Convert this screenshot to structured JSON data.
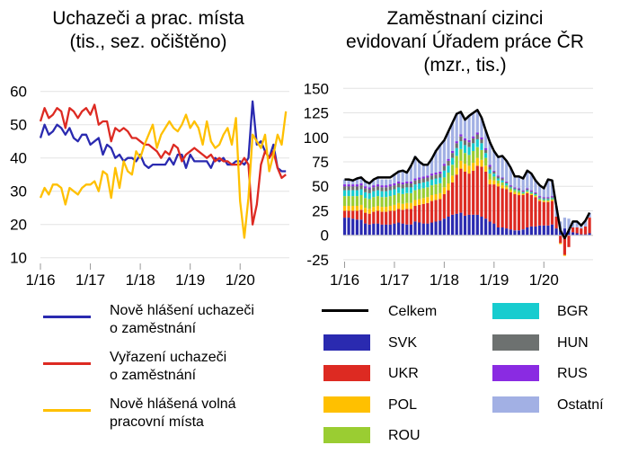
{
  "left_chart": {
    "title_line1": "Uchazeči a prac. místa",
    "title_line2": "(tis., sez. očištěno)"
  },
  "right_chart": {
    "title_line1": "Zaměstnaní cizinci",
    "title_line2": "evidovaní Úřadem práce ČR",
    "title_line3": "(mzr., tis.)"
  },
  "chart_data": [
    {
      "type": "line",
      "title": "Uchazeči a prac. místa (tis., sez. očištěno)",
      "x_start": "1/16",
      "x_ticks": [
        "1/16",
        "1/17",
        "1/18",
        "1/19",
        "1/20"
      ],
      "y_ticks": [
        10,
        20,
        30,
        40,
        50,
        60
      ],
      "ylim": [
        10,
        60
      ],
      "grid": true,
      "legend_position": "bottom",
      "series": [
        {
          "name": "Nově hlášení uchazeči o zaměstnání",
          "label_line1": "Nově hlášení uchazeči",
          "label_line2": "o zaměstnání",
          "color": "#2a2ab0",
          "values": [
            46,
            50,
            47,
            48,
            50,
            49,
            47,
            49,
            46,
            45,
            47,
            47,
            44,
            45,
            46,
            41,
            44,
            43,
            40,
            41,
            39,
            40,
            40,
            39,
            41,
            38,
            37,
            38,
            38,
            38,
            38,
            40,
            38,
            41,
            41,
            37,
            41,
            39,
            39,
            39,
            39,
            37,
            40,
            39,
            40,
            38,
            38,
            39,
            39,
            38,
            40,
            57,
            44,
            45,
            42,
            40,
            44,
            37,
            36,
            36
          ]
        },
        {
          "name": "Vyřazení uchazeči o zaměstnání",
          "label_line1": "Vyřazení uchazeči",
          "label_line2": "o zaměstnání",
          "color": "#dd2a22",
          "values": [
            51,
            55,
            52,
            53,
            55,
            54,
            49,
            55,
            54,
            52,
            54,
            55,
            53,
            56,
            50,
            51,
            51,
            45,
            49,
            48,
            49,
            48,
            46,
            46,
            45,
            44,
            44,
            43,
            42,
            40,
            42,
            41,
            44,
            43,
            39,
            41,
            42,
            43,
            42,
            41,
            40,
            41,
            39,
            40,
            39,
            39,
            38,
            38,
            38,
            40,
            38,
            20,
            26,
            38,
            42,
            40,
            42,
            37,
            34,
            35
          ]
        },
        {
          "name": "Nově hlášená volná pracovní místa",
          "label_line1": "Nově hlášená volná",
          "label_line2": "pracovní místa",
          "color": "#ffc000",
          "values": [
            28,
            31,
            29,
            32,
            32,
            31,
            26,
            31,
            30,
            29,
            31,
            32,
            32,
            33,
            30,
            36,
            35,
            28,
            37,
            31,
            39,
            36,
            35,
            42,
            40,
            44,
            47,
            50,
            43,
            47,
            49,
            51,
            49,
            48,
            50,
            53,
            49,
            51,
            49,
            44,
            51,
            45,
            43,
            44,
            47,
            49,
            44,
            52,
            27,
            16,
            28,
            47,
            45,
            43,
            47,
            36,
            41,
            47,
            44,
            54
          ]
        }
      ]
    },
    {
      "type": "bar",
      "stacked": true,
      "title": "Zaměstnaní cizinci evidovaní Úřadem práce ČR (mzr., tis.)",
      "x_start": "1/16",
      "x_ticks": [
        "1/16",
        "1/17",
        "1/18",
        "1/19",
        "1/20"
      ],
      "y_ticks": [
        -25,
        0,
        25,
        50,
        75,
        100,
        125,
        150
      ],
      "ylim": [
        -25,
        150
      ],
      "grid": true,
      "legend_position": "bottom",
      "line_series": {
        "name": "Celkem",
        "color": "#000000",
        "values": [
          57,
          57,
          56,
          58,
          59,
          55,
          53,
          57,
          59,
          59,
          59,
          59,
          62,
          65,
          66,
          64,
          71,
          80,
          75,
          72,
          72,
          78,
          86,
          92,
          97,
          106,
          115,
          124,
          126,
          118,
          122,
          125,
          128,
          120,
          107,
          95,
          86,
          80,
          81,
          76,
          69,
          60,
          60,
          58,
          66,
          63,
          56,
          51,
          48,
          57,
          56,
          30,
          5,
          -3,
          5,
          14,
          14,
          10,
          15,
          23
        ]
      },
      "series": [
        {
          "name": "SVK",
          "color": "#2a2ab0",
          "values": [
            18,
            18,
            17,
            16,
            16,
            12,
            11,
            12,
            12,
            11,
            11,
            11,
            12,
            13,
            12,
            11,
            11,
            14,
            13,
            12,
            12,
            13,
            14,
            15,
            17,
            19,
            21,
            22,
            23,
            20,
            21,
            21,
            21,
            19,
            17,
            14,
            12,
            8,
            8,
            7,
            6,
            5,
            5,
            6,
            8,
            9,
            9,
            10,
            10,
            10,
            11,
            7,
            5,
            7,
            5,
            3,
            2,
            1,
            1,
            2
          ]
        },
        {
          "name": "UKR",
          "color": "#dd2a22",
          "values": [
            7,
            7,
            8,
            9,
            10,
            11,
            11,
            12,
            13,
            13,
            13,
            14,
            13,
            14,
            14,
            16,
            16,
            16,
            18,
            20,
            21,
            22,
            22,
            22,
            25,
            27,
            33,
            40,
            45,
            45,
            42,
            45,
            50,
            51,
            48,
            38,
            40,
            42,
            40,
            40,
            38,
            37,
            36,
            35,
            35,
            32,
            30,
            25,
            24,
            24,
            24,
            12,
            -8,
            -20,
            -12,
            5,
            6,
            6,
            8,
            16
          ]
        },
        {
          "name": "POL",
          "color": "#ffc000",
          "values": [
            5,
            5,
            5,
            5,
            5,
            5,
            5,
            5,
            5,
            5,
            5,
            5,
            6,
            6,
            6,
            6,
            6,
            6,
            6,
            6,
            6,
            6,
            6,
            6,
            7,
            7,
            7,
            7,
            8,
            8,
            8,
            8,
            8,
            7,
            6,
            5,
            4,
            3,
            3,
            2,
            2,
            2,
            2,
            1,
            1,
            1,
            1,
            1,
            1,
            1,
            1,
            0,
            -1,
            -1,
            0,
            0,
            0,
            0,
            0,
            0
          ]
        },
        {
          "name": "ROU",
          "color": "#9acd32",
          "values": [
            10,
            10,
            10,
            10,
            10,
            10,
            10,
            10,
            10,
            10,
            10,
            10,
            10,
            10,
            10,
            10,
            10,
            10,
            10,
            10,
            10,
            10,
            10,
            10,
            10,
            11,
            11,
            12,
            12,
            11,
            11,
            12,
            11,
            10,
            8,
            6,
            4,
            3,
            3,
            2,
            2,
            2,
            2,
            1,
            1,
            1,
            1,
            1,
            1,
            1,
            1,
            0,
            0,
            0,
            0,
            0,
            0,
            0,
            0,
            0
          ]
        },
        {
          "name": "BGR",
          "color": "#17cccf",
          "values": [
            6,
            6,
            6,
            6,
            6,
            6,
            6,
            6,
            6,
            6,
            6,
            6,
            6,
            6,
            6,
            6,
            6,
            6,
            6,
            6,
            6,
            6,
            6,
            6,
            7,
            7,
            7,
            8,
            8,
            8,
            8,
            8,
            8,
            7,
            5,
            4,
            3,
            2,
            2,
            2,
            1,
            1,
            1,
            1,
            1,
            1,
            1,
            1,
            1,
            1,
            1,
            0,
            0,
            0,
            0,
            0,
            0,
            0,
            0,
            0
          ]
        },
        {
          "name": "HUN",
          "color": "#6d7170",
          "values": [
            4,
            4,
            4,
            4,
            4,
            4,
            4,
            4,
            4,
            4,
            4,
            4,
            4,
            4,
            4,
            4,
            4,
            4,
            4,
            4,
            4,
            4,
            4,
            4,
            5,
            5,
            5,
            5,
            5,
            5,
            5,
            5,
            5,
            4,
            3,
            3,
            2,
            2,
            2,
            1,
            1,
            1,
            1,
            1,
            1,
            1,
            1,
            1,
            1,
            1,
            1,
            0,
            0,
            0,
            0,
            0,
            0,
            0,
            0,
            0
          ]
        },
        {
          "name": "RUS",
          "color": "#8a2be2",
          "values": [
            2,
            2,
            2,
            2,
            2,
            2,
            2,
            2,
            2,
            2,
            2,
            2,
            2,
            2,
            2,
            2,
            2,
            2,
            2,
            2,
            2,
            2,
            2,
            2,
            2,
            2,
            2,
            2,
            2,
            2,
            2,
            2,
            2,
            2,
            2,
            2,
            1,
            1,
            1,
            1,
            1,
            1,
            1,
            1,
            1,
            1,
            1,
            1,
            1,
            1,
            1,
            0,
            0,
            0,
            0,
            0,
            0,
            0,
            0,
            0
          ]
        },
        {
          "name": "Ostatní",
          "color": "#a2b0e4",
          "values": [
            5,
            5,
            4,
            6,
            6,
            5,
            4,
            5,
            6,
            6,
            6,
            5,
            10,
            11,
            13,
            10,
            17,
            23,
            17,
            13,
            12,
            16,
            23,
            27,
            24,
            28,
            29,
            28,
            23,
            19,
            25,
            24,
            23,
            20,
            18,
            23,
            20,
            19,
            22,
            21,
            18,
            11,
            12,
            12,
            18,
            17,
            12,
            11,
            9,
            18,
            16,
            11,
            9,
            11,
            12,
            6,
            6,
            3,
            6,
            5
          ]
        }
      ]
    }
  ]
}
